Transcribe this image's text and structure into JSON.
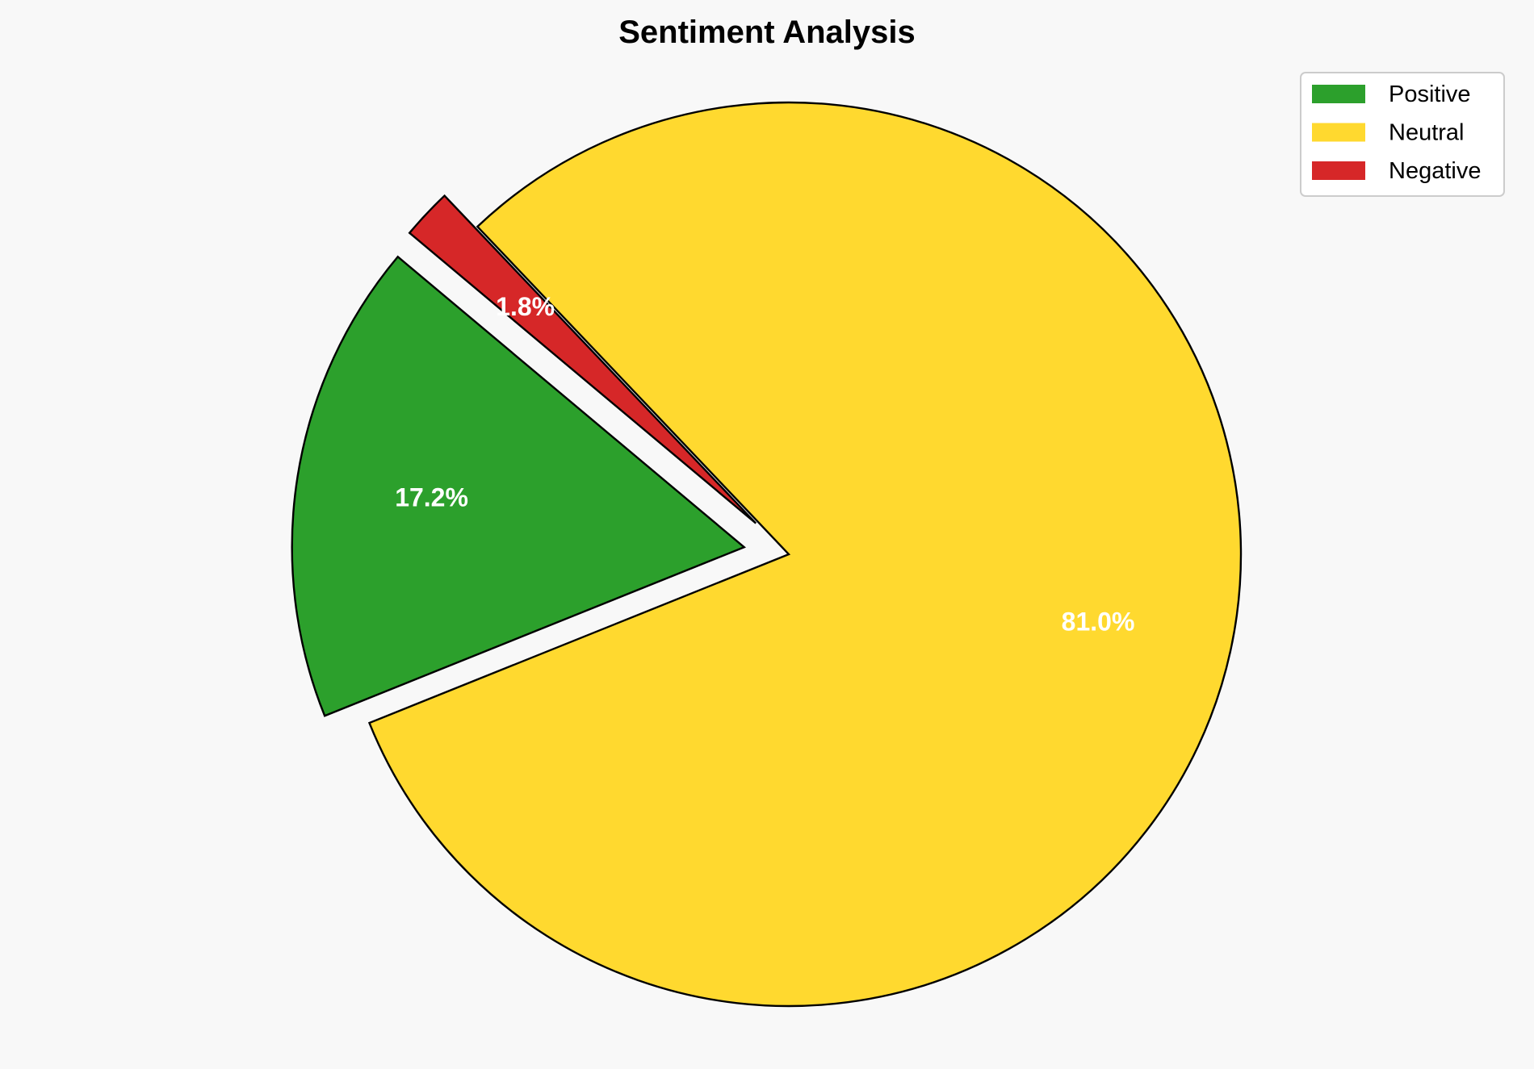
{
  "chart_data": {
    "type": "pie",
    "title": "Sentiment Analysis",
    "categories": [
      "Positive",
      "Neutral",
      "Negative"
    ],
    "values": [
      17.2,
      81.0,
      1.8
    ],
    "labels": [
      "17.2%",
      "81.0%",
      "1.8%"
    ],
    "colors": [
      "#2ca02c",
      "#ffd92f",
      "#d62728"
    ],
    "exploded": [
      true,
      false,
      true
    ],
    "start_angle_deg": 140,
    "direction": "counterclockwise",
    "legend_placement": "top-right",
    "background": "#f8f8f8",
    "edge_color": "#000000"
  }
}
